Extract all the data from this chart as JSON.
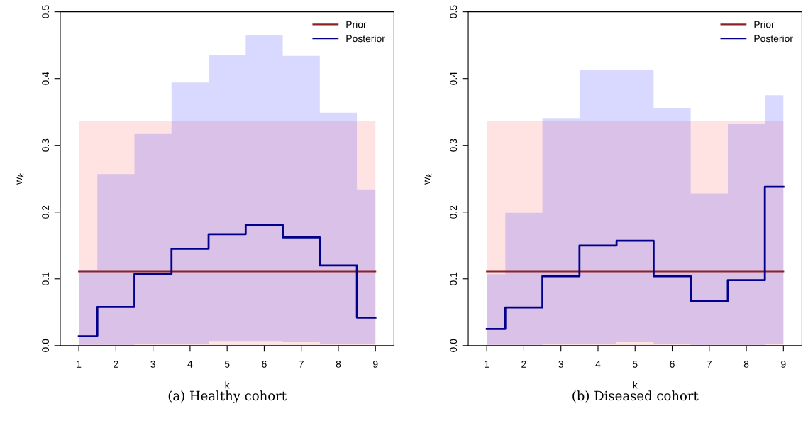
{
  "chart_data": [
    {
      "type": "step",
      "title": "(a) Healthy cohort",
      "xlabel": "k",
      "ylabel": "w$_{k}$",
      "x": [
        1,
        2,
        3,
        4,
        5,
        6,
        7,
        8,
        9
      ],
      "xlim": [
        0.5,
        9.5
      ],
      "xticks": [
        1,
        2,
        3,
        4,
        5,
        6,
        7,
        8,
        9
      ],
      "ylim": [
        0,
        0.5
      ],
      "yticks": [
        {
          "value": 0,
          "label": "0.0"
        },
        0.1,
        0.2,
        0.3,
        0.4,
        0.5
      ],
      "legend": "top right",
      "grid": false,
      "series": [
        {
          "name": "Prior",
          "color": "#8b2323",
          "values": [
            0.111,
            0.111,
            0.111,
            0.111,
            0.111,
            0.111,
            0.111,
            0.111,
            0.111
          ],
          "lower": [
            0,
            0,
            0,
            0,
            0,
            0,
            0,
            0,
            0
          ],
          "upper": [
            0.336,
            0.336,
            0.336,
            0.336,
            0.336,
            0.336,
            0.336,
            0.336,
            0.336
          ]
        },
        {
          "name": "Posterior",
          "color": "#00008b",
          "values": [
            0.014,
            0.058,
            0.107,
            0.145,
            0.167,
            0.181,
            0.162,
            0.12,
            0.042
          ],
          "lower": [
            0.001,
            0.001,
            0.002,
            0.003,
            0.006,
            0.006,
            0.005,
            0.002,
            0.002
          ],
          "upper": [
            0.113,
            0.257,
            0.317,
            0.394,
            0.435,
            0.465,
            0.434,
            0.349,
            0.234
          ]
        }
      ]
    },
    {
      "type": "step",
      "title": "(b) Diseased cohort",
      "xlabel": "k",
      "ylabel": "w$_{k}$",
      "x": [
        1,
        2,
        3,
        4,
        5,
        6,
        7,
        8,
        9
      ],
      "xlim": [
        0.5,
        9.5
      ],
      "xticks": [
        1,
        2,
        3,
        4,
        5,
        6,
        7,
        8,
        9
      ],
      "ylim": [
        0,
        0.5
      ],
      "yticks": [
        {
          "value": 0,
          "label": "0.0"
        },
        0.1,
        0.2,
        0.3,
        0.4,
        0.5
      ],
      "legend": "top right",
      "grid": false,
      "series": [
        {
          "name": "Prior",
          "color": "#8b2323",
          "values": [
            0.111,
            0.111,
            0.111,
            0.111,
            0.111,
            0.111,
            0.111,
            0.111,
            0.111
          ],
          "lower": [
            0,
            0,
            0,
            0,
            0,
            0,
            0,
            0,
            0
          ],
          "upper": [
            0.336,
            0.336,
            0.336,
            0.336,
            0.336,
            0.336,
            0.336,
            0.336,
            0.336
          ]
        },
        {
          "name": "Posterior",
          "color": "#00008b",
          "values": [
            0.025,
            0.057,
            0.104,
            0.15,
            0.157,
            0.104,
            0.067,
            0.098,
            0.238
          ],
          "lower": [
            0.001,
            0.001,
            0.002,
            0.003,
            0.005,
            0.002,
            0.001,
            0.001,
            0.002
          ],
          "upper": [
            0.107,
            0.199,
            0.341,
            0.413,
            0.413,
            0.356,
            0.228,
            0.332,
            0.375
          ]
        }
      ]
    }
  ]
}
